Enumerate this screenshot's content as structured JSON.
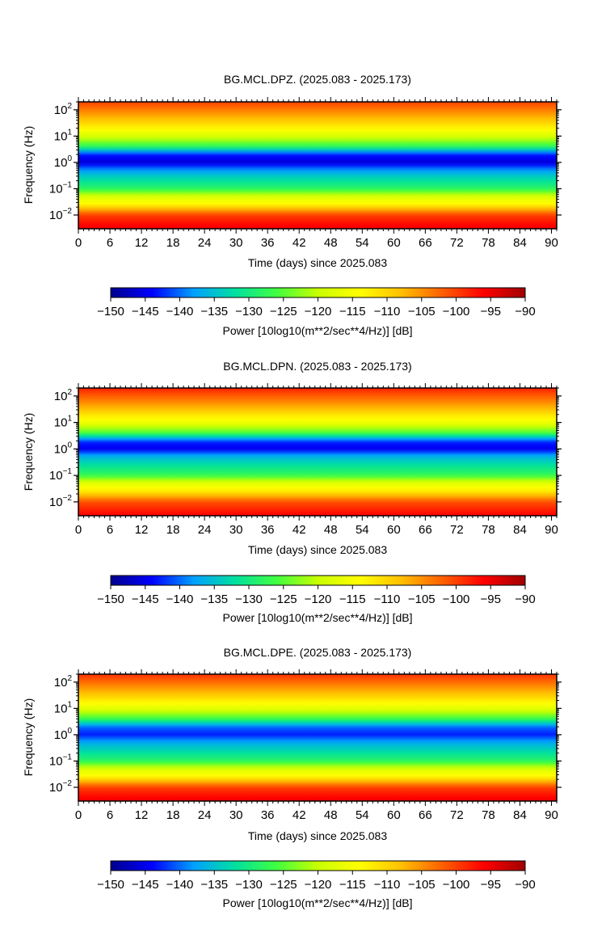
{
  "chart_data": [
    {
      "type": "heatmap",
      "title": "BG.MCL.DPZ. (2025.083 - 2025.173)",
      "xlabel": "Time (days) since 2025.083",
      "ylabel": "Frequency (Hz)",
      "x_ticks": [
        "0",
        "6",
        "12",
        "18",
        "24",
        "30",
        "36",
        "42",
        "48",
        "54",
        "60",
        "66",
        "72",
        "78",
        "84",
        "90"
      ],
      "xlim": [
        0,
        91
      ],
      "y_scale": "log",
      "y_ticks": [
        {
          "base": "10",
          "exp": "−2"
        },
        {
          "base": "10",
          "exp": "−1"
        },
        {
          "base": "10",
          "exp": "0"
        },
        {
          "base": "10",
          "exp": "1"
        },
        {
          "base": "10",
          "exp": "2"
        }
      ],
      "ylim": [
        0.003,
        200
      ],
      "colorbar": {
        "label": "Power [10log10(m**2/sec**4/Hz)] [dB]",
        "ticks": [
          "−150",
          "−145",
          "−140",
          "−135",
          "−130",
          "−125",
          "−120",
          "−115",
          "−110",
          "−105",
          "−100",
          "−95",
          "−90"
        ],
        "range": [
          -150,
          -90
        ]
      },
      "profile": {
        "log10_freq": [
          -2.5,
          -2.0,
          -1.6,
          -1.3,
          -1.0,
          -0.6,
          -0.3,
          0.0,
          0.3,
          0.6,
          1.0,
          1.5,
          2.3
        ],
        "power_db": [
          -95,
          -100,
          -113,
          -118,
          -128,
          -133,
          -138,
          -146,
          -143,
          -128,
          -118,
          -110,
          -100
        ]
      }
    },
    {
      "type": "heatmap",
      "title": "BG.MCL.DPN. (2025.083 - 2025.173)",
      "xlabel": "Time (days) since 2025.083",
      "ylabel": "Frequency (Hz)",
      "x_ticks": [
        "0",
        "6",
        "12",
        "18",
        "24",
        "30",
        "36",
        "42",
        "48",
        "54",
        "60",
        "66",
        "72",
        "78",
        "84",
        "90"
      ],
      "xlim": [
        0,
        91
      ],
      "y_scale": "log",
      "y_ticks": [
        {
          "base": "10",
          "exp": "−2"
        },
        {
          "base": "10",
          "exp": "−1"
        },
        {
          "base": "10",
          "exp": "0"
        },
        {
          "base": "10",
          "exp": "1"
        },
        {
          "base": "10",
          "exp": "2"
        }
      ],
      "ylim": [
        0.003,
        200
      ],
      "colorbar": {
        "label": "Power [10log10(m**2/sec**4/Hz)] [dB]",
        "ticks": [
          "−150",
          "−145",
          "−140",
          "−135",
          "−130",
          "−125",
          "−120",
          "−115",
          "−110",
          "−105",
          "−100",
          "−95",
          "−90"
        ],
        "range": [
          -150,
          -90
        ]
      },
      "profile": {
        "log10_freq": [
          -2.5,
          -2.0,
          -1.6,
          -1.3,
          -1.0,
          -0.6,
          -0.3,
          0.0,
          0.3,
          0.6,
          1.0,
          1.5,
          2.3
        ],
        "power_db": [
          -96,
          -101,
          -112,
          -117,
          -127,
          -132,
          -136,
          -145,
          -142,
          -126,
          -116,
          -108,
          -98
        ]
      }
    },
    {
      "type": "heatmap",
      "title": "BG.MCL.DPE. (2025.083 - 2025.173)",
      "xlabel": "Time (days) since 2025.083",
      "ylabel": "Frequency (Hz)",
      "x_ticks": [
        "0",
        "6",
        "12",
        "18",
        "24",
        "30",
        "36",
        "42",
        "48",
        "54",
        "60",
        "66",
        "72",
        "78",
        "84",
        "90"
      ],
      "xlim": [
        0,
        91
      ],
      "y_scale": "log",
      "y_ticks": [
        {
          "base": "10",
          "exp": "−2"
        },
        {
          "base": "10",
          "exp": "−1"
        },
        {
          "base": "10",
          "exp": "0"
        },
        {
          "base": "10",
          "exp": "1"
        },
        {
          "base": "10",
          "exp": "2"
        }
      ],
      "ylim": [
        0.003,
        200
      ],
      "colorbar": {
        "label": "Power [10log10(m**2/sec**4/Hz)] [dB]",
        "ticks": [
          "−150",
          "−145",
          "−140",
          "−135",
          "−130",
          "−125",
          "−120",
          "−115",
          "−110",
          "−105",
          "−100",
          "−95",
          "−90"
        ],
        "range": [
          -150,
          -90
        ]
      },
      "profile": {
        "log10_freq": [
          -2.5,
          -2.0,
          -1.6,
          -1.3,
          -1.0,
          -0.6,
          -0.3,
          0.0,
          0.3,
          0.6,
          1.0,
          1.5,
          2.3
        ],
        "power_db": [
          -95,
          -100,
          -113,
          -118,
          -128,
          -133,
          -137,
          -143,
          -140,
          -127,
          -117,
          -109,
          -99
        ]
      }
    }
  ],
  "colors": {
    "colormap": [
      "#00008c",
      "#0000ff",
      "#00a0ff",
      "#00e0a0",
      "#40ff40",
      "#c8ff00",
      "#ffff00",
      "#ffc000",
      "#ff6000",
      "#ff0000",
      "#a00000"
    ]
  }
}
